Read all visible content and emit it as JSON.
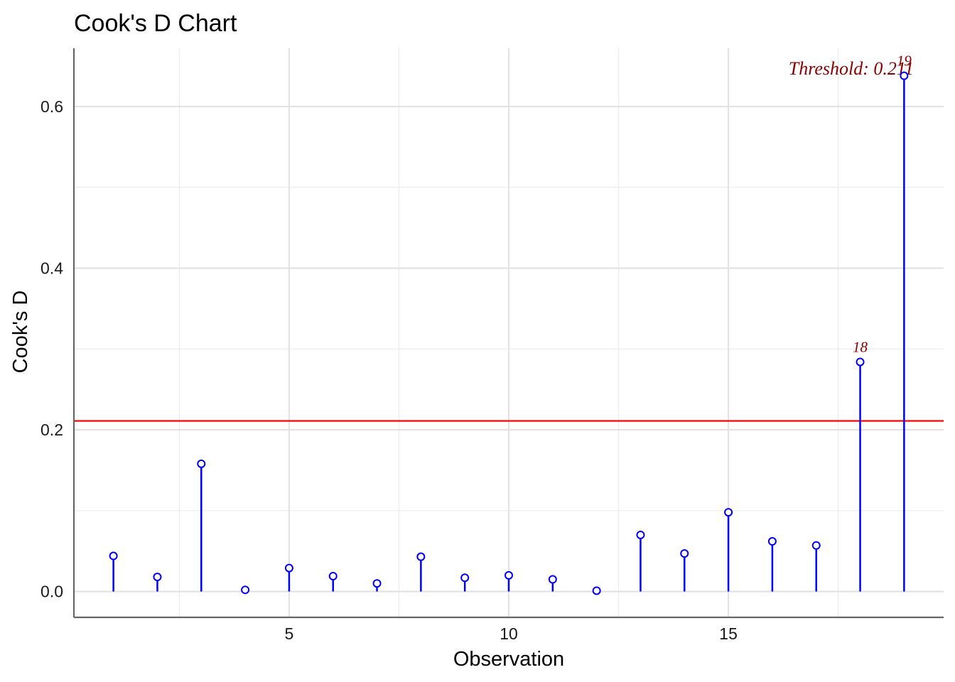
{
  "chart_data": {
    "type": "lollipop",
    "title": "Cook's D Chart",
    "xlabel": "Observation",
    "ylabel": "Cook's D",
    "xlim": [
      0.1,
      19.9
    ],
    "ylim": [
      -0.032,
      0.672
    ],
    "x_ticks": [
      5,
      10,
      15
    ],
    "x_tick_labels": [
      "5",
      "10",
      "15"
    ],
    "y_ticks": [
      0.0,
      0.2,
      0.4,
      0.6
    ],
    "y_tick_labels": [
      "0.0",
      "0.2",
      "0.4",
      "0.6"
    ],
    "grid": true,
    "threshold": {
      "value": 0.211,
      "label": "Threshold: 0.211",
      "color": "#ff0000"
    },
    "point_color": "#0000ff",
    "label_color": "#8b0000",
    "x": [
      1,
      2,
      3,
      4,
      5,
      6,
      7,
      8,
      9,
      10,
      11,
      12,
      13,
      14,
      15,
      16,
      17,
      18,
      19
    ],
    "values": [
      0.044,
      0.018,
      0.158,
      0.002,
      0.029,
      0.019,
      0.01,
      0.043,
      0.017,
      0.02,
      0.015,
      0.001,
      0.07,
      0.047,
      0.098,
      0.062,
      0.057,
      0.284,
      0.638
    ],
    "point_labels": [
      {
        "x": 18,
        "text": "18"
      },
      {
        "x": 19,
        "text": "19"
      }
    ]
  }
}
